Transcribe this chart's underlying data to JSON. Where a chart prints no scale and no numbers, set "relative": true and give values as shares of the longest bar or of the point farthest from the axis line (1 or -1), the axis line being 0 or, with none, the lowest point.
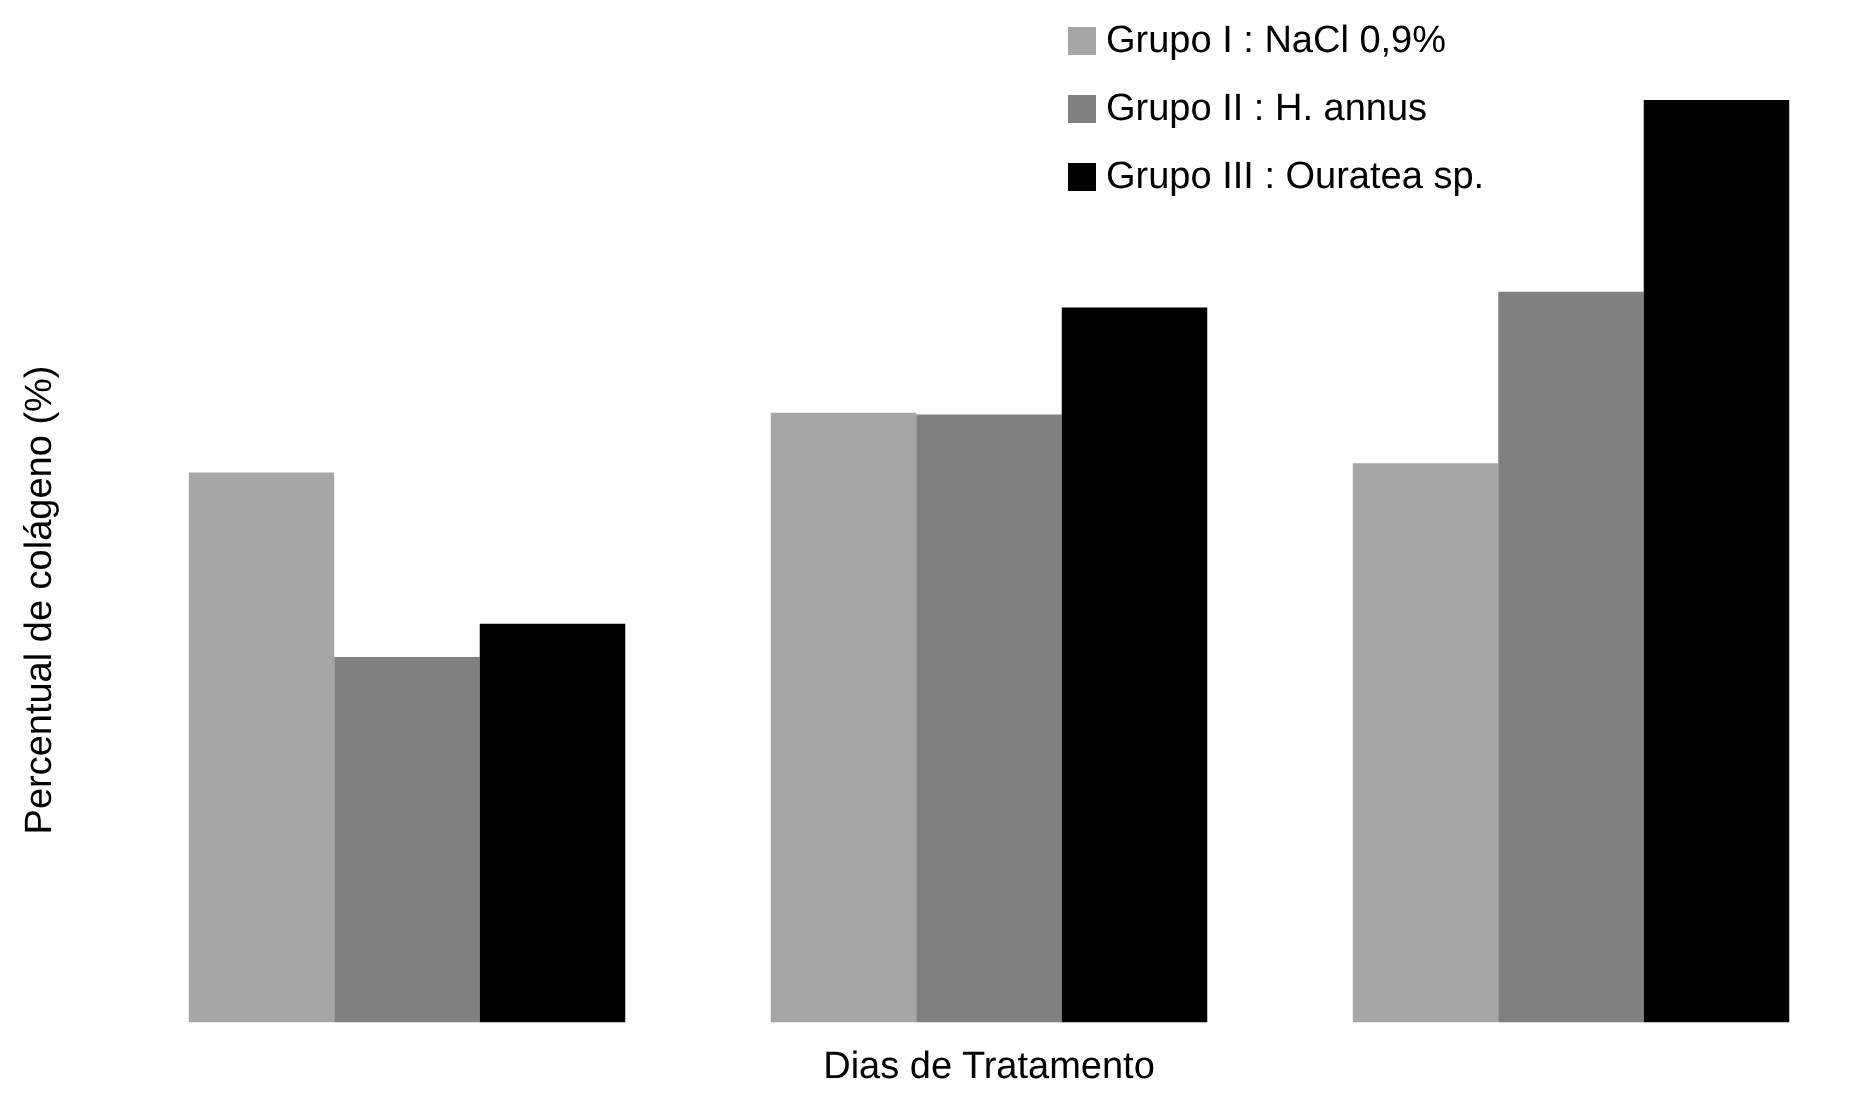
{
  "chart_data": {
    "type": "bar",
    "xlabel": "Dias de Tratamento",
    "ylabel": "Percentual de colágeno (%)",
    "relative": true,
    "categories": [
      null,
      null,
      null
    ],
    "series": [
      {
        "name": "Grupo I : NaCl 0,9%",
        "color": "#a6a6a6",
        "values": [
          0.596,
          0.661,
          0.606
        ]
      },
      {
        "name": "Grupo II : H. annus",
        "color": "#808080",
        "values": [
          0.396,
          0.659,
          0.792
        ]
      },
      {
        "name": "Grupo III : Ouratea sp.",
        "color": "#000000",
        "values": [
          0.432,
          0.775,
          1
        ]
      }
    ],
    "legend": "top right"
  }
}
